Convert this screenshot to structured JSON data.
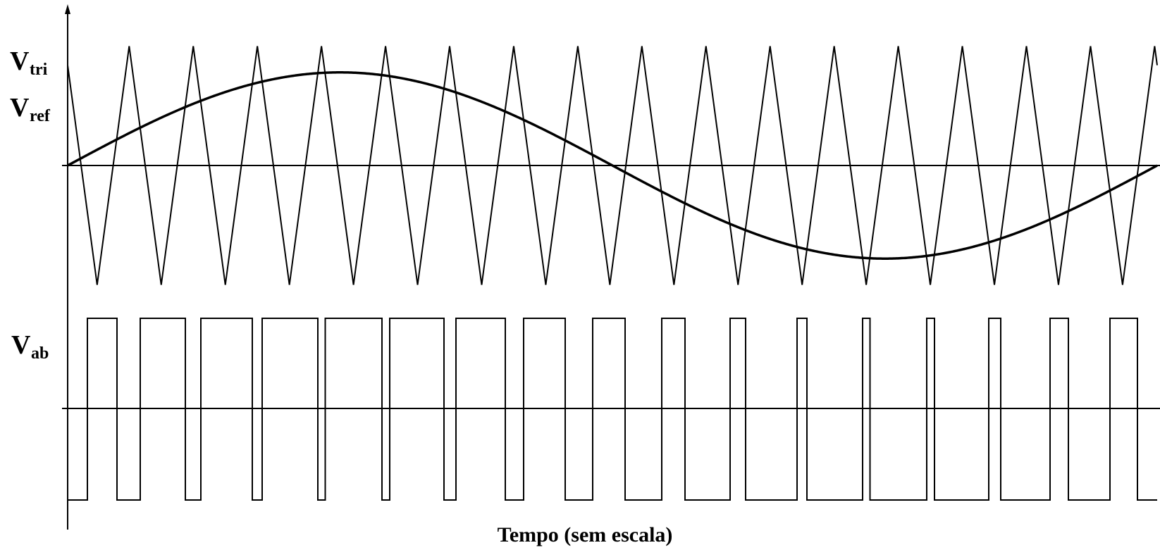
{
  "labels": {
    "v_tri": {
      "main": "V",
      "sub": "tri"
    },
    "v_ref": {
      "main": "V",
      "sub": "ref"
    },
    "v_ab": {
      "main": "V",
      "sub": "ab"
    },
    "x_axis": "Tempo (sem escala)"
  },
  "signals": {
    "carrier_periods": 17,
    "reference_cycles": 1,
    "modulation_index": 0.78,
    "line_color": "#000000"
  }
}
